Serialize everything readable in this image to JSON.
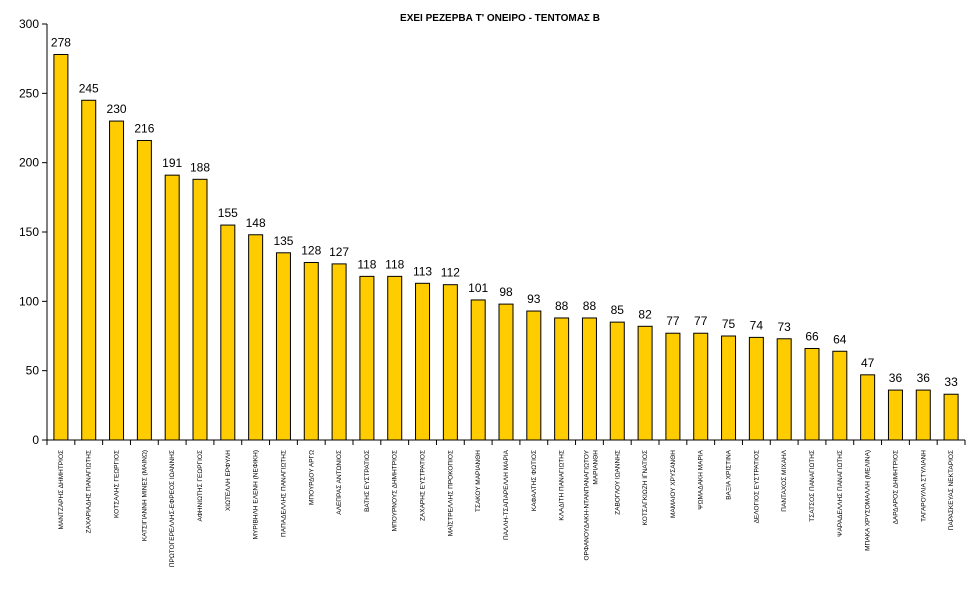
{
  "chart_data": {
    "type": "bar",
    "title": "ΕΧΕΙ ΡΕΖΕΡΒΑ Τ' ΟΝΕΙΡΟ - ΤΕΝΤΟΜΑΣ Β",
    "xlabel": "",
    "ylabel": "",
    "ylim": [
      0,
      300
    ],
    "yticks": [
      0,
      50,
      100,
      150,
      200,
      250,
      300
    ],
    "grid": false,
    "legend": "none",
    "bar_color": "#FFCC00",
    "bar_stroke": "#000000",
    "categories": [
      "ΜΑΝΤΖΑΡΗΣ ΔΗΜΗΤΡΙΟΣ",
      "ΖΑΧΑΡΙΑΔΗΣ ΠΑΝΑΓΙΩΤΗΣ",
      "ΚΟΤΣΑΛΗΣ ΓΕΩΡΓΙΟΣ",
      "ΚΑΤΣΙΓΙΑΝΝΗ ΜΙΝΕΣ (ΜΑΙΝΩ)",
      "ΠΡΩΤΟΓΕΡΕΛΛΗΣ-ΕΦΡΕΟΣ ΙΩΑΝΝΗΣ",
      "ΑΦΗΝΙΩΤΗΣ ΓΕΩΡΓΙΟΣ",
      "ΧΙΩΤΕΛΛΗ ΕΡΦΥΛΗ",
      "ΜΥΡΙΒΗΛΗ ΕΛΕΝΗ (ΝΕΦΙΚΗ)",
      "ΠΑΠΑΔΕΛΛΗΣ ΠΑΝΑΓΙΩΤΗΣ",
      "ΜΠΟΥΡΔΟΥ ΑΡΓΩ",
      "ΑΛΕΠΡΑΣ ΑΝΤΩΝΙΟΣ",
      "ΒΑΤΗΣ ΕΥΣΤΡΑΤΙΟΣ",
      "ΜΠΟΥΡΝΟΥΣ ΔΗΜΗΤΡΙΟΣ",
      "ΖΑΧΑΡΗΣ ΕΥΣΤΡΑΤΙΟΣ",
      "ΜΑΪΣΤΡΕΛΛΗΣ ΠΡΟΚΟΠΙΟΣ",
      "ΤΣΑΚΟΥ ΜΑΡΙΑΝΘΗ",
      "ΠΑΛΛΗ-ΤΣΑΠΑΡΕΛΛΗ ΜΑΡΙΑ",
      "ΚΑΦΑΛΤΗΣ ΦΩΤΙΟΣ",
      "ΚΛΑΔΙΤΗ ΠΑΝΑΓΙΩΤΗΣ",
      "ΟΡΦΑΝΟΥΔΑΚΗ-ΝΤΑΝΠΑΝΑΓΙΩΤΟΥ ΜΑΡΙΑΝΘΗ",
      "ΖΑΒΟΓΛΟΥ ΙΩΑΝΝΗΣ",
      "ΚΟΤΣΑΓΚΙΩΖΗ ΙΓΝΑΤΙΟΣ",
      "ΜΑΜΑΙΟΥ ΧΡΥΣΑΝΘΗ",
      "ΨΩΜΑΔΑΚΗ ΜΑΡΙΑ",
      "ΒΑΞΙΑ ΧΡΙΣΤΙΝΑ",
      "ΔΕΛΟΓΙΟΣ ΕΥΣΤΡΑΤΙΟΣ",
      "ΠΑΝΤΑΧΟΣ ΜΙΧΑΗΛ",
      "ΤΣΑΤΣΟΣ ΠΑΝΑΓΙΩΤΗΣ",
      "ΨΑΡΑΔΕΛΛΗΣ ΠΑΝΑΓΙΩΤΗΣ",
      "ΜΠΑΚΑ ΧΡΥΣΟΜΑΛΛΗ (ΜΕΛΙΝΑ)",
      "ΔΑΡΔΑΡΟΣ ΔΗΜΗΤΡΙΟΣ",
      "ΤΑΓΑΡΟΥΛΙΑ ΣΤΥΛΙΑΝΗ",
      "ΠΑΡΑΣΚΕΥΑΣ ΝΕΚΤΑΡΙΟΣ"
    ],
    "values": [
      278,
      245,
      230,
      216,
      191,
      188,
      155,
      148,
      135,
      128,
      127,
      118,
      118,
      113,
      112,
      101,
      98,
      93,
      88,
      88,
      85,
      82,
      77,
      77,
      75,
      74,
      73,
      66,
      64,
      47,
      36,
      36,
      33
    ],
    "value_labels": [
      "278",
      "245",
      "230",
      "216",
      "191",
      "188",
      "155",
      "148",
      "135",
      "128",
      "127",
      "118",
      "118",
      "113",
      "112",
      "101",
      "98",
      "93",
      "88",
      "88",
      "85",
      "82",
      "77",
      "77",
      "75",
      "74",
      "73",
      "66",
      "64",
      "47",
      "36",
      "36",
      "33"
    ],
    "ytick_labels": [
      "0",
      "50",
      "100",
      "150",
      "200",
      "250",
      "300"
    ]
  }
}
